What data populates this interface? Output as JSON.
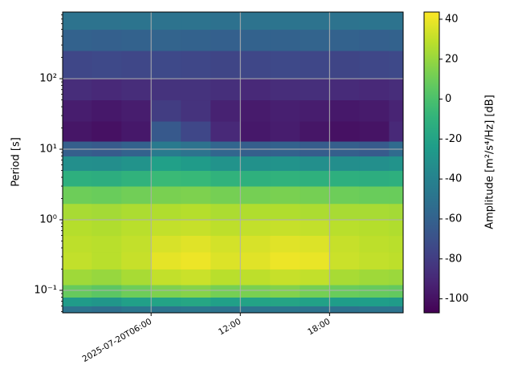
{
  "chart_data": {
    "type": "heatmap",
    "ylabel": "Period [s]",
    "colorbar_label": "Amplitude [m²/s⁴/Hz] [dB]",
    "colormap": "viridis",
    "grid": true,
    "ylog": true,
    "xlim": [
      0.05,
      22.95
    ],
    "xticks": [
      {
        "value": 6,
        "label": "2025-07-20T06:00"
      },
      {
        "value": 12,
        "label": "12:00"
      },
      {
        "value": 18,
        "label": "18:00"
      }
    ],
    "ylim": [
      0.048,
      880
    ],
    "yticks": [
      {
        "value": 0.1,
        "label": "10⁻¹"
      },
      {
        "value": 1,
        "label": "10⁰"
      },
      {
        "value": 10,
        "label": "10¹"
      },
      {
        "value": 100,
        "label": "10²"
      }
    ],
    "clim": [
      -107,
      43.6
    ],
    "cticks": [
      -100,
      -80,
      -60,
      -40,
      -20,
      0,
      20,
      40
    ],
    "x": [
      0.05,
      2,
      4,
      6,
      8,
      10,
      12,
      14,
      16,
      18,
      20,
      22,
      22.95
    ],
    "y": [
      0.048,
      0.06,
      0.08,
      0.12,
      0.2,
      0.35,
      0.6,
      1,
      1.7,
      3,
      5,
      8,
      13,
      25,
      50,
      100,
      250,
      500,
      880
    ],
    "z": [
      [
        -50,
        -52,
        -48,
        -50,
        -47,
        -50,
        -49,
        -48,
        -50,
        -51,
        -49,
        -50
      ],
      [
        -25,
        -28,
        -22,
        -20,
        -18,
        -22,
        -20,
        -19,
        -21,
        -24,
        -23,
        -25
      ],
      [
        8,
        5,
        10,
        14,
        16,
        12,
        13,
        15,
        12,
        9,
        8,
        7
      ],
      [
        22,
        20,
        24,
        30,
        32,
        28,
        29,
        31,
        30,
        24,
        22,
        21
      ],
      [
        30,
        28,
        31,
        38,
        40,
        36,
        37,
        40,
        39,
        32,
        30,
        29
      ],
      [
        29,
        28,
        30,
        35,
        37,
        34,
        35,
        37,
        36,
        31,
        29,
        28
      ],
      [
        27,
        26,
        28,
        30,
        31,
        29,
        30,
        31,
        30,
        28,
        27,
        26
      ],
      [
        24,
        23,
        25,
        26,
        27,
        25,
        26,
        26,
        25,
        24,
        24,
        23
      ],
      [
        10,
        9,
        11,
        13,
        14,
        12,
        12,
        13,
        12,
        10,
        9,
        9
      ],
      [
        -12,
        -13,
        -10,
        -5,
        -6,
        -10,
        -11,
        -10,
        -11,
        -12,
        -13,
        -12
      ],
      [
        -32,
        -33,
        -30,
        -22,
        -25,
        -30,
        -31,
        -30,
        -32,
        -33,
        -32,
        -30
      ],
      [
        -62,
        -64,
        -60,
        -45,
        -50,
        -58,
        -62,
        -60,
        -63,
        -62,
        -64,
        -55
      ],
      [
        -98,
        -100,
        -97,
        -65,
        -75,
        -90,
        -97,
        -95,
        -98,
        -100,
        -99,
        -90
      ],
      [
        -95,
        -97,
        -95,
        -80,
        -85,
        -93,
        -96,
        -94,
        -95,
        -97,
        -96,
        -92
      ],
      [
        -88,
        -90,
        -88,
        -85,
        -85,
        -87,
        -90,
        -88,
        -87,
        -89,
        -90,
        -88
      ],
      [
        -75,
        -74,
        -75,
        -74,
        -75,
        -76,
        -75,
        -74,
        -75,
        -76,
        -75,
        -74
      ],
      [
        -60,
        -61,
        -60,
        -59,
        -60,
        -61,
        -60,
        -60,
        -59,
        -60,
        -61,
        -60
      ],
      [
        -50,
        -50,
        -49,
        -50,
        -50,
        -51,
        -50,
        -49,
        -50,
        -50,
        -49,
        -50
      ]
    ]
  }
}
